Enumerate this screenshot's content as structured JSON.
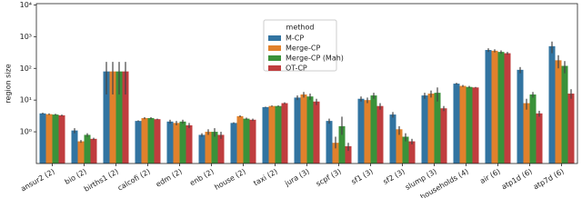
{
  "chart_data": {
    "type": "bar",
    "ylabel": "region size",
    "log_scale": true,
    "ylim": [
      0.1,
      11000
    ],
    "yticks": [
      {
        "value": 1,
        "label": "10⁰"
      },
      {
        "value": 10,
        "label": "10¹"
      },
      {
        "value": 100,
        "label": "10²"
      },
      {
        "value": 1000,
        "label": "10³"
      },
      {
        "value": 10000,
        "label": "10⁴"
      }
    ],
    "categories": [
      "ansur2 (2)",
      "bio (2)",
      "births1 (2)",
      "calcofi (2)",
      "edm (2)",
      "enb (2)",
      "house (2)",
      "taxi (2)",
      "jura (3)",
      "scpf (3)",
      "sf1 (3)",
      "sf2 (3)",
      "slump (3)",
      "households (4)",
      "air (6)",
      "atp1d (6)",
      "atp7d (6)"
    ],
    "legend_title": "method",
    "legend_position": "upper center",
    "series": [
      {
        "name": "M-CP",
        "color": "#3274a1",
        "values": [
          3.8,
          1.1,
          80,
          2.2,
          2.1,
          0.8,
          1.9,
          6,
          12,
          2.2,
          11,
          3.5,
          14,
          33,
          380,
          90,
          500
        ],
        "ci": [
          [
            3.6,
            4.0
          ],
          [
            0.9,
            1.3
          ],
          [
            15,
            160
          ],
          [
            2.1,
            2.3
          ],
          [
            1.8,
            2.4
          ],
          [
            0.7,
            0.9
          ],
          [
            1.8,
            2.0
          ],
          [
            5.8,
            6.2
          ],
          [
            10,
            14
          ],
          [
            1.8,
            2.6
          ],
          [
            9,
            13
          ],
          [
            2.8,
            4.2
          ],
          [
            11,
            17
          ],
          [
            31,
            35
          ],
          [
            330,
            430
          ],
          [
            70,
            110
          ],
          [
            300,
            700
          ]
        ]
      },
      {
        "name": "Merge-CP",
        "color": "#e1812c",
        "values": [
          3.6,
          0.5,
          80,
          2.7,
          1.9,
          1.0,
          3.1,
          6.5,
          15,
          0.45,
          10,
          1.2,
          16,
          28,
          360,
          8,
          180
        ],
        "ci": [
          [
            3.4,
            3.8
          ],
          [
            0.45,
            0.55
          ],
          [
            15,
            160
          ],
          [
            2.5,
            2.9
          ],
          [
            1.6,
            2.2
          ],
          [
            0.8,
            1.2
          ],
          [
            2.9,
            3.3
          ],
          [
            6.2,
            6.8
          ],
          [
            12,
            18
          ],
          [
            0.3,
            0.7
          ],
          [
            8,
            12
          ],
          [
            0.8,
            1.5
          ],
          [
            12,
            20
          ],
          [
            26,
            30
          ],
          [
            320,
            400
          ],
          [
            5,
            11
          ],
          [
            100,
            260
          ]
        ]
      },
      {
        "name": "Merge-CP (Mah)",
        "color": "#3a923a",
        "values": [
          3.5,
          0.8,
          80,
          2.7,
          2.1,
          1.0,
          2.6,
          6.5,
          13,
          1.5,
          14,
          0.7,
          17,
          26,
          330,
          15,
          120
        ],
        "ci": [
          [
            3.3,
            3.7
          ],
          [
            0.7,
            0.9
          ],
          [
            15,
            160
          ],
          [
            2.5,
            2.9
          ],
          [
            1.8,
            2.4
          ],
          [
            0.7,
            1.3
          ],
          [
            2.4,
            2.8
          ],
          [
            6.2,
            6.8
          ],
          [
            10,
            16
          ],
          [
            0.8,
            3.0
          ],
          [
            11,
            17
          ],
          [
            0.5,
            0.9
          ],
          [
            9,
            25
          ],
          [
            24,
            28
          ],
          [
            290,
            370
          ],
          [
            12,
            18
          ],
          [
            70,
            170
          ]
        ]
      },
      {
        "name": "OT-CP",
        "color": "#c03d3e",
        "values": [
          3.3,
          0.6,
          80,
          2.5,
          1.6,
          0.8,
          2.4,
          8,
          9,
          0.35,
          6.5,
          0.5,
          5.5,
          25,
          300,
          3.8,
          16
        ],
        "ci": [
          [
            3.1,
            3.5
          ],
          [
            0.55,
            0.65
          ],
          [
            15,
            160
          ],
          [
            2.4,
            2.6
          ],
          [
            1.3,
            1.9
          ],
          [
            0.6,
            1.0
          ],
          [
            2.2,
            2.6
          ],
          [
            7.5,
            8.5
          ],
          [
            7,
            11
          ],
          [
            0.25,
            0.45
          ],
          [
            5,
            8
          ],
          [
            0.4,
            0.6
          ],
          [
            4.5,
            6.5
          ],
          [
            24,
            26
          ],
          [
            270,
            330
          ],
          [
            3,
            4.6
          ],
          [
            11,
            22
          ]
        ]
      }
    ]
  }
}
